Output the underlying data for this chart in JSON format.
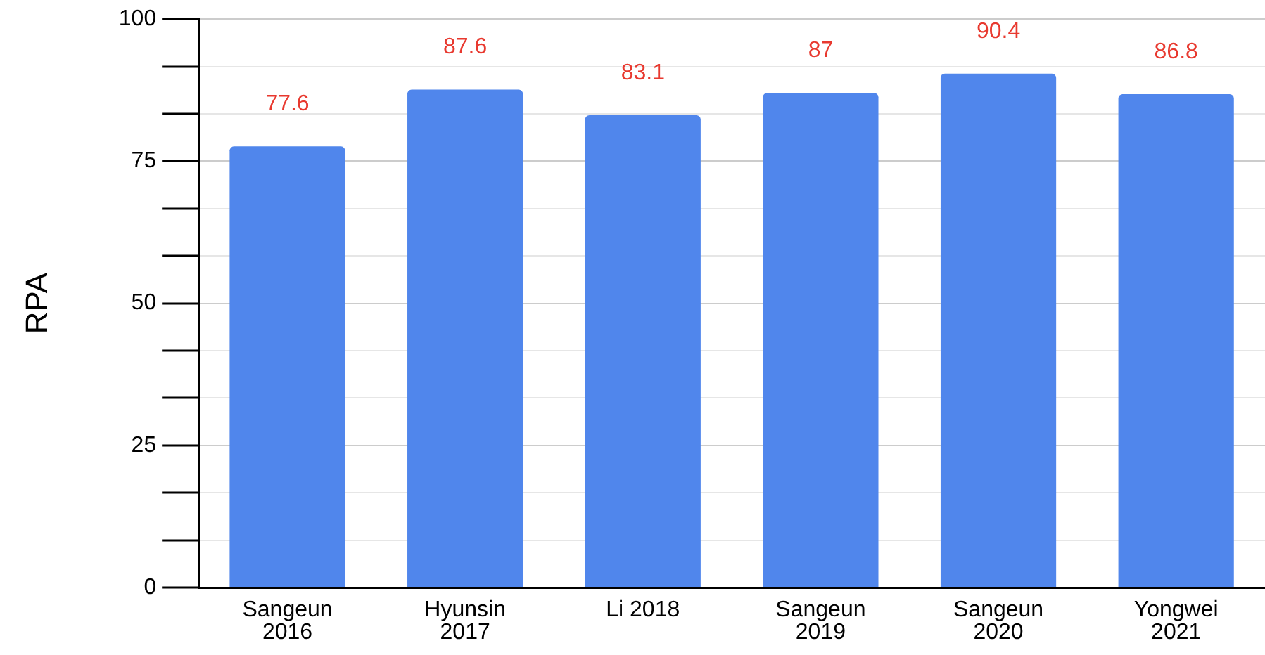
{
  "chart_data": {
    "type": "bar",
    "ylabel": "RPA",
    "categories": [
      "Sangeun\n2016",
      "Hyunsin\n2017",
      "Li 2018",
      "Sangeun\n2019",
      "Sangeun\n2020",
      "Yongwei\n2021"
    ],
    "values": [
      77.6,
      87.6,
      83.1,
      87,
      90.4,
      86.8
    ],
    "color": "#5086ec",
    "ylim": [
      0,
      100
    ],
    "yticks": [
      0,
      {
        "value": 8.33,
        "label": null
      },
      {
        "value": 16.67,
        "label": null
      },
      25,
      {
        "value": 33.33,
        "label": null
      },
      {
        "value": 41.67,
        "label": null
      },
      50,
      {
        "value": 58.33,
        "label": null
      },
      {
        "value": 66.67,
        "label": null
      },
      75,
      {
        "value": 83.33,
        "label": null
      },
      {
        "value": 91.67,
        "label": null
      },
      100
    ],
    "grid": "y",
    "legend": false,
    "data_labels": true
  }
}
